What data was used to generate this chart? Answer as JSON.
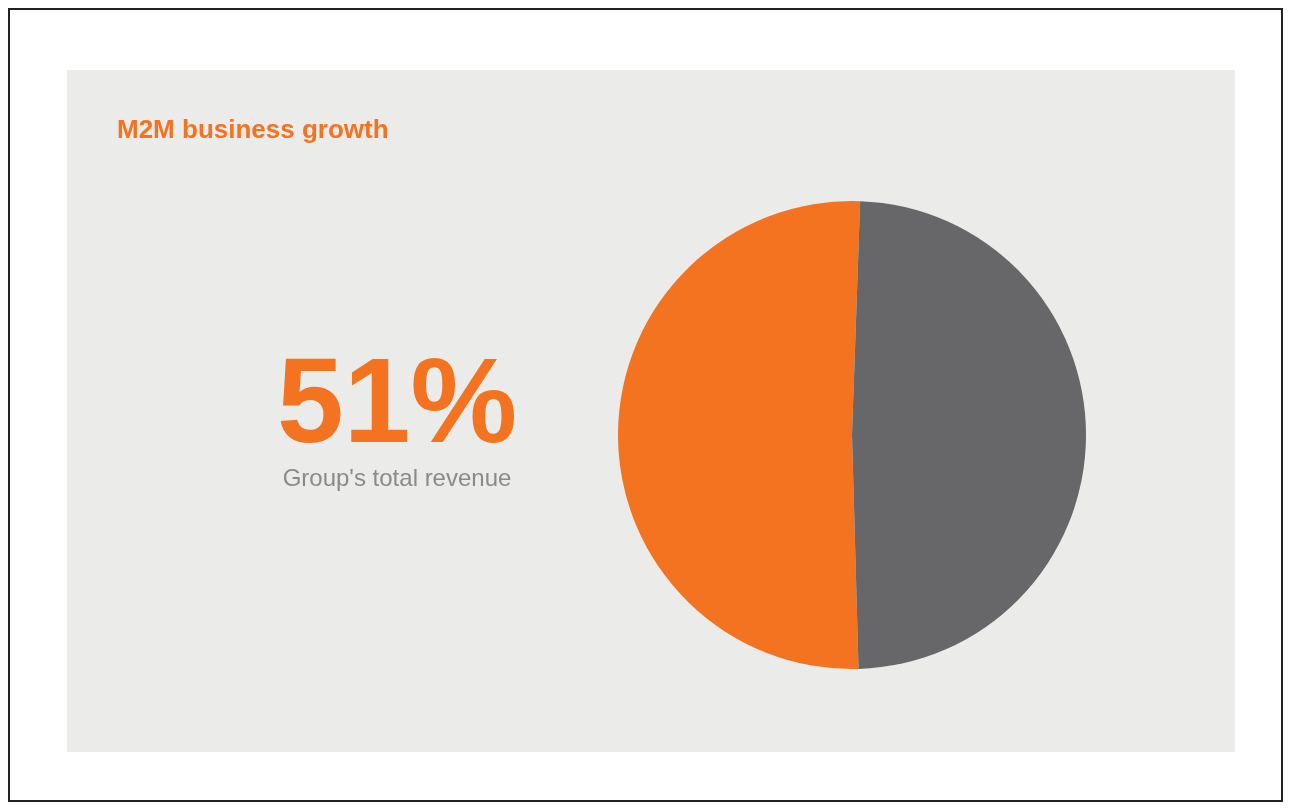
{
  "chart_data": {
    "type": "pie",
    "title": "M2M business growth",
    "categories": [
      "Group's total revenue",
      null
    ],
    "values": [
      51,
      49
    ],
    "colors": [
      "#f47321",
      "#676769"
    ],
    "value_labels": [
      "51%",
      null
    ]
  }
}
